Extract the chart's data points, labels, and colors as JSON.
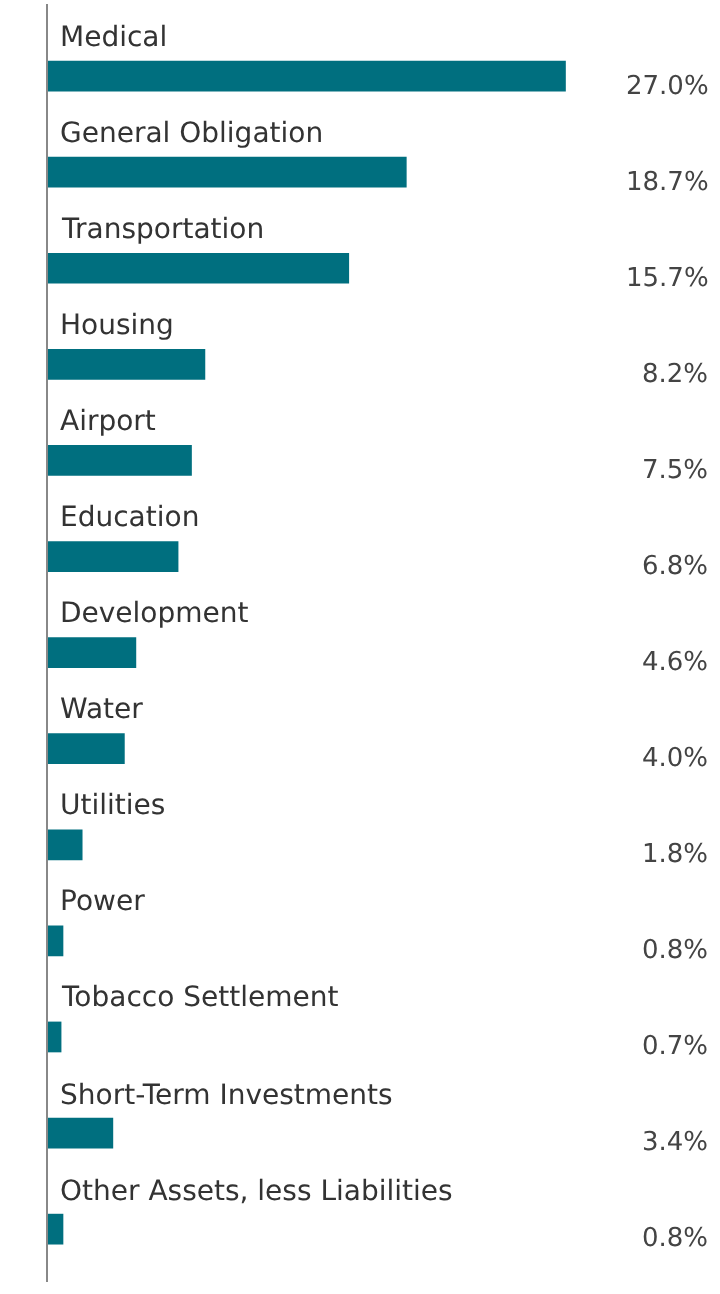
{
  "chart_data": {
    "type": "bar",
    "orientation": "horizontal",
    "categories": [
      "Medical",
      "General Obligation",
      "Transportation",
      "Housing",
      "Airport",
      "Education",
      "Development",
      "Water",
      "Utilities",
      "Power",
      "Tobacco Settlement",
      "Short-Term Investments",
      "Other Assets, less Liabilities"
    ],
    "values": [
      27.0,
      18.7,
      15.7,
      8.2,
      7.5,
      6.8,
      4.6,
      4.0,
      1.8,
      0.8,
      0.7,
      3.4,
      0.8
    ],
    "value_labels": [
      "27.0%",
      "18.7%",
      "15.7%",
      "8.2%",
      "7.5%",
      "6.8%",
      "4.6%",
      "4.0%",
      "1.8%",
      "0.8%",
      "0.7%",
      "3.4%",
      "0.8%"
    ],
    "color": "#006f7f",
    "tick_labels": false
  }
}
